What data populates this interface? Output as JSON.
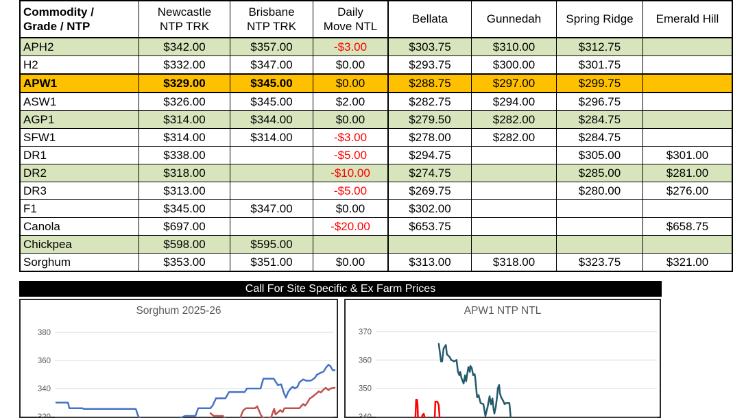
{
  "table": {
    "headers": [
      "Commodity /\nGrade / NTP",
      "Newcastle\nNTP TRK",
      "Brisbane\nNTP TRK",
      "Daily\nMove NTL",
      "Bellata",
      "Gunnedah",
      "Spring Ridge",
      "Emerald Hill"
    ],
    "rows": [
      {
        "commodity": "APH2",
        "bg": "green",
        "values": [
          "$342.00",
          "$357.00",
          "-$3.00",
          "$303.75",
          "$310.00",
          "$312.75",
          ""
        ]
      },
      {
        "commodity": "H2",
        "bg": "white",
        "values": [
          "$332.00",
          "$347.00",
          "$0.00",
          "$293.75",
          "$300.00",
          "$301.75",
          ""
        ]
      },
      {
        "commodity": "APW1",
        "bg": "orange",
        "bold_cols": [
          0,
          1,
          2
        ],
        "values": [
          "$329.00",
          "$345.00",
          "$0.00",
          "$288.75",
          "$297.00",
          "$299.75",
          ""
        ]
      },
      {
        "commodity": "ASW1",
        "bg": "white",
        "values": [
          "$326.00",
          "$345.00",
          "$2.00",
          "$282.75",
          "$294.00",
          "$296.75",
          ""
        ]
      },
      {
        "commodity": "AGP1",
        "bg": "green",
        "values": [
          "$314.00",
          "$344.00",
          "$0.00",
          "$279.50",
          "$282.00",
          "$284.75",
          ""
        ]
      },
      {
        "commodity": "SFW1",
        "bg": "white",
        "values": [
          "$314.00",
          "$314.00",
          "-$3.00",
          "$278.00",
          "$282.00",
          "$284.75",
          ""
        ]
      },
      {
        "commodity": "DR1",
        "bg": "white",
        "values": [
          "$338.00",
          "",
          "-$5.00",
          "$294.75",
          "",
          "$305.00",
          "$301.00"
        ]
      },
      {
        "commodity": "DR2",
        "bg": "green",
        "values": [
          "$318.00",
          "",
          "-$10.00",
          "$274.75",
          "",
          "$285.00",
          "$281.00"
        ]
      },
      {
        "commodity": "DR3",
        "bg": "white",
        "values": [
          "$313.00",
          "",
          "-$5.00",
          "$269.75",
          "",
          "$280.00",
          "$276.00"
        ]
      },
      {
        "commodity": "F1",
        "bg": "white",
        "values": [
          "$345.00",
          "$347.00",
          "$0.00",
          "$302.00",
          "",
          "",
          ""
        ]
      },
      {
        "commodity": "Canola",
        "bg": "white",
        "values": [
          "$697.00",
          "",
          "-$20.00",
          "$653.75",
          "",
          "",
          "$658.75"
        ]
      },
      {
        "commodity": "Chickpea",
        "bg": "green",
        "values": [
          "$598.00",
          "$595.00",
          "",
          "",
          "",
          "",
          ""
        ]
      },
      {
        "commodity": "Sorghum",
        "bg": "white",
        "values": [
          "$353.00",
          "$351.00",
          "$0.00",
          "$313.00",
          "$318.00",
          "$323.75",
          "$321.00"
        ]
      }
    ]
  },
  "banner": {
    "text": "Call For Site Specific & Ex Farm Prices"
  },
  "colors": {
    "row_green": "#D8E4BC",
    "row_orange": "#FFC000",
    "negative_move": "#FF0000",
    "banner_bg": "#000000",
    "chart_text": "#595959",
    "gridline": "#D9D9D9"
  },
  "chart_data": [
    {
      "type": "line",
      "title": "Sorghum 2025-26",
      "xlabel": "",
      "ylabel": "",
      "x_note": "x = percent across plot area; date axis cropped out of screenshot",
      "y_ticks": [
        380,
        360,
        340,
        320
      ],
      "ylim_visible": [
        316,
        380
      ],
      "grid": "horizontal",
      "legend": "none",
      "series": [
        {
          "name": "blue-series",
          "color": "#4472C4",
          "points": [
            [
              0,
              330
            ],
            [
              4.2,
              330
            ],
            [
              4.7,
              326
            ],
            [
              9.4,
              326
            ],
            [
              9.9,
              325.5
            ],
            [
              28.6,
              325.5
            ],
            [
              29.3,
              321
            ],
            [
              30.8,
              316
            ],
            [
              43.8,
              316
            ],
            [
              45.1,
              319.5
            ],
            [
              46.3,
              320.5
            ],
            [
              50,
              320.5
            ],
            [
              51,
              326
            ],
            [
              55.4,
              326
            ],
            [
              56.2,
              328
            ],
            [
              57.4,
              333
            ],
            [
              60.8,
              333
            ],
            [
              62.1,
              337.5
            ],
            [
              67.7,
              337.5
            ],
            [
              68.5,
              340
            ],
            [
              73.4,
              340
            ],
            [
              74.4,
              347
            ],
            [
              78.1,
              347
            ],
            [
              79.6,
              342.5
            ],
            [
              80.8,
              343
            ],
            [
              81.8,
              336.7
            ],
            [
              82.5,
              333.5
            ],
            [
              83.3,
              337.5
            ],
            [
              84.2,
              340
            ],
            [
              85,
              341.3
            ],
            [
              85.7,
              340
            ],
            [
              86.7,
              341.3
            ],
            [
              87.4,
              344.5
            ],
            [
              88.7,
              346.5
            ],
            [
              89.9,
              345.5
            ],
            [
              91.6,
              345.7
            ],
            [
              92.9,
              347.6
            ],
            [
              93.6,
              349.7
            ],
            [
              94.8,
              351
            ],
            [
              96.1,
              352.2
            ],
            [
              96.8,
              354.6
            ],
            [
              97.8,
              357
            ],
            [
              98.5,
              355.9
            ],
            [
              99.3,
              353
            ],
            [
              100,
              353
            ]
          ]
        },
        {
          "name": "red-series",
          "color": "#C0504D",
          "points": [
            [
              55.4,
              322.5
            ],
            [
              56.2,
              321
            ],
            [
              56.7,
              320.5
            ],
            [
              59.9,
              320.5
            ],
            [
              60.6,
              318.5
            ],
            [
              61.1,
              317
            ],
            [
              62.8,
              316.5
            ],
            [
              66,
              317
            ],
            [
              66.5,
              321.4
            ],
            [
              67.2,
              324.4
            ],
            [
              68.2,
              326
            ],
            [
              71.4,
              326
            ],
            [
              72.2,
              327.3
            ],
            [
              73.4,
              321.7
            ],
            [
              74.1,
              319.3
            ],
            [
              75.1,
              318.5
            ],
            [
              77.1,
              318.8
            ],
            [
              77.8,
              323
            ],
            [
              78.3,
              325.6
            ],
            [
              78.8,
              321.5
            ],
            [
              79.6,
              323
            ],
            [
              80.5,
              324.7
            ],
            [
              81.3,
              323.2
            ],
            [
              82,
              326
            ],
            [
              87.4,
              326
            ],
            [
              87.9,
              327.3
            ],
            [
              88.7,
              329
            ],
            [
              89.4,
              327.8
            ],
            [
              90.4,
              330.6
            ],
            [
              91.1,
              333
            ],
            [
              91.9,
              333.9
            ],
            [
              92.9,
              335.6
            ],
            [
              93.6,
              336.7
            ],
            [
              94.3,
              338
            ],
            [
              95.1,
              337.2
            ],
            [
              96.1,
              339.4
            ],
            [
              96.8,
              340.5
            ],
            [
              97.8,
              338.9
            ],
            [
              98.5,
              340
            ],
            [
              100,
              340.5
            ]
          ]
        }
      ]
    },
    {
      "type": "line",
      "title": "APW1 NTP NTL",
      "xlabel": "",
      "ylabel": "",
      "x_note": "x = percent across plot area; date axis cropped out of screenshot",
      "y_ticks": [
        370,
        360,
        350,
        340
      ],
      "ylim_visible": [
        339,
        370
      ],
      "grid": "horizontal",
      "legend": "none",
      "series": [
        {
          "name": "teal-series",
          "color": "#235A6B",
          "points": [
            [
              22.3,
              365.7
            ],
            [
              22.8,
              362
            ],
            [
              23.1,
              359.5
            ],
            [
              23.5,
              359.5
            ],
            [
              24,
              364
            ],
            [
              24.8,
              365.3
            ],
            [
              25.2,
              362
            ],
            [
              25.7,
              361.5
            ],
            [
              26.2,
              361
            ],
            [
              26.7,
              360
            ],
            [
              27.2,
              359.8
            ],
            [
              27.7,
              359.5
            ],
            [
              28.6,
              360
            ],
            [
              29.1,
              355.8
            ],
            [
              29.6,
              354.6
            ],
            [
              29.9,
              355.8
            ],
            [
              30.3,
              353.8
            ],
            [
              31.1,
              351.7
            ],
            [
              31.6,
              354.6
            ],
            [
              32,
              352.5
            ],
            [
              32.3,
              354.6
            ],
            [
              32.8,
              357.5
            ],
            [
              33.3,
              355.8
            ],
            [
              33.5,
              357.9
            ],
            [
              34,
              357.1
            ],
            [
              34.5,
              354.6
            ],
            [
              35,
              355
            ],
            [
              35.2,
              353.8
            ],
            [
              35.7,
              348.4
            ],
            [
              35.9,
              346.8
            ],
            [
              36.4,
              347.6
            ],
            [
              37.1,
              344.8
            ],
            [
              38.1,
              344.4
            ],
            [
              38.8,
              340.2
            ],
            [
              39.6,
              343.5
            ],
            [
              40.3,
              347.2
            ],
            [
              40.8,
              344.3
            ],
            [
              41.3,
              346.4
            ],
            [
              41.7,
              342.7
            ],
            [
              42,
              341.1
            ],
            [
              42.5,
              343.5
            ],
            [
              43,
              347.6
            ],
            [
              43.2,
              350
            ],
            [
              43.7,
              351.2
            ],
            [
              43.9,
              348.4
            ],
            [
              44.4,
              346.8
            ],
            [
              45.1,
              345.6
            ],
            [
              45.6,
              344.4
            ],
            [
              46.1,
              344.8
            ],
            [
              47.3,
              344.8
            ],
            [
              47.8,
              339.4
            ],
            [
              48.1,
              336
            ]
          ]
        },
        {
          "name": "red-series",
          "color": "#FF0000",
          "points": [
            [
              13.8,
              336
            ],
            [
              14.1,
              341
            ],
            [
              14.3,
              346
            ],
            [
              14.6,
              346
            ],
            [
              14.8,
              344
            ],
            [
              15,
              337.5
            ],
            [
              15.5,
              337.3
            ],
            [
              16,
              337.5
            ],
            [
              16.5,
              340.5
            ],
            [
              17,
              341
            ],
            [
              17.5,
              339
            ],
            [
              18,
              338.3
            ],
            [
              18.4,
              338.6
            ],
            [
              18.9,
              339
            ],
            [
              19.4,
              337.7
            ],
            [
              19.9,
              337.4
            ],
            [
              20.4,
              337.6
            ],
            [
              20.9,
              340
            ],
            [
              21.1,
              345.3
            ],
            [
              21.8,
              345.3
            ],
            [
              22.3,
              344
            ],
            [
              22.6,
              339.5
            ],
            [
              23.1,
              338
            ],
            [
              23.8,
              338.2
            ],
            [
              24.5,
              337.2
            ],
            [
              25,
              336.6
            ],
            [
              25.5,
              337
            ],
            [
              26,
              337.6
            ],
            [
              26.5,
              337
            ],
            [
              26.9,
              336.2
            ],
            [
              27.4,
              334.5
            ]
          ]
        }
      ]
    }
  ]
}
